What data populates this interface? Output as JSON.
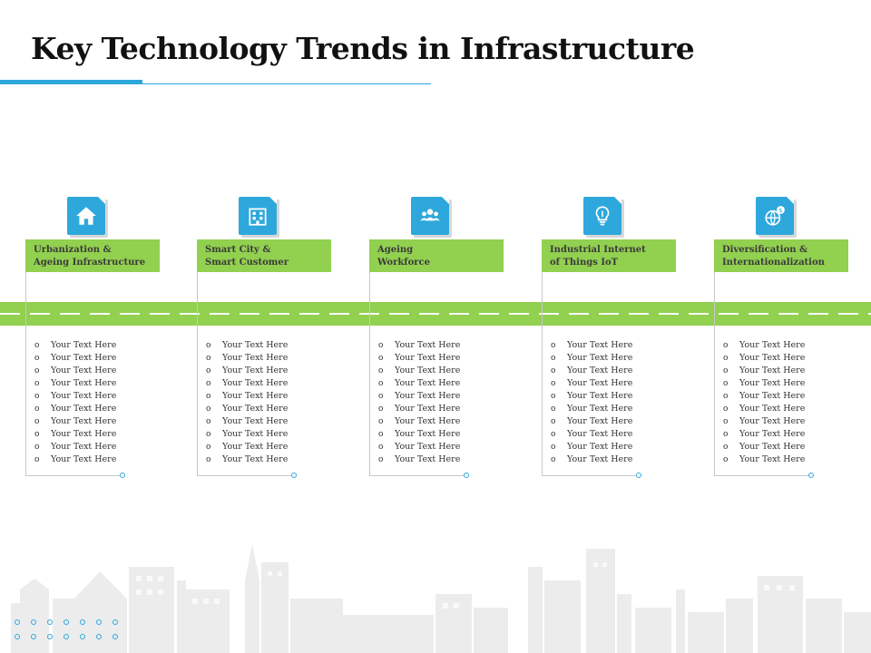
{
  "title": "Key Technology Trends in Infrastructure",
  "columns": [
    {
      "icon": "house-icon",
      "heading_line1": "Urbanization &",
      "heading_line2": "Ageing Infrastructure",
      "items": [
        "Your Text Here",
        "Your Text Here",
        "Your Text Here",
        "Your Text Here",
        "Your Text Here",
        "Your Text Here",
        "Your Text Here",
        "Your Text Here",
        "Your Text Here",
        "Your Text Here"
      ]
    },
    {
      "icon": "building-icon",
      "heading_line1": "Smart City &",
      "heading_line2": "Smart Customer",
      "items": [
        "Your Text Here",
        "Your Text Here",
        "Your Text Here",
        "Your Text Here",
        "Your Text Here",
        "Your Text Here",
        "Your Text Here",
        "Your Text Here",
        "Your Text Here",
        "Your Text Here"
      ]
    },
    {
      "icon": "group-icon",
      "heading_line1": "Ageing",
      "heading_line2": "Workforce",
      "items": [
        "Your Text Here",
        "Your Text Here",
        "Your Text Here",
        "Your Text Here",
        "Your Text Here",
        "Your Text Here",
        "Your Text Here",
        "Your Text Here",
        "Your Text Here",
        "Your Text Here"
      ]
    },
    {
      "icon": "lightbulb-icon",
      "heading_line1": "Industrial Internet",
      "heading_line2": "of Things IoT",
      "items": [
        "Your Text Here",
        "Your Text Here",
        "Your Text Here",
        "Your Text Here",
        "Your Text Here",
        "Your Text Here",
        "Your Text Here",
        "Your Text Here",
        "Your Text Here",
        "Your Text Here"
      ]
    },
    {
      "icon": "globe-dollar-icon",
      "heading_line1": "Diversification &",
      "heading_line2": "Internationalization",
      "items": [
        "Your Text Here",
        "Your Text Here",
        "Your Text Here",
        "Your Text Here",
        "Your Text Here",
        "Your Text Here",
        "Your Text Here",
        "Your Text Here",
        "Your Text Here",
        "Your Text Here"
      ]
    }
  ],
  "colors": {
    "accent_blue": "#2ea8dc",
    "accent_green": "#92d050",
    "skyline_gray": "#ececec"
  }
}
